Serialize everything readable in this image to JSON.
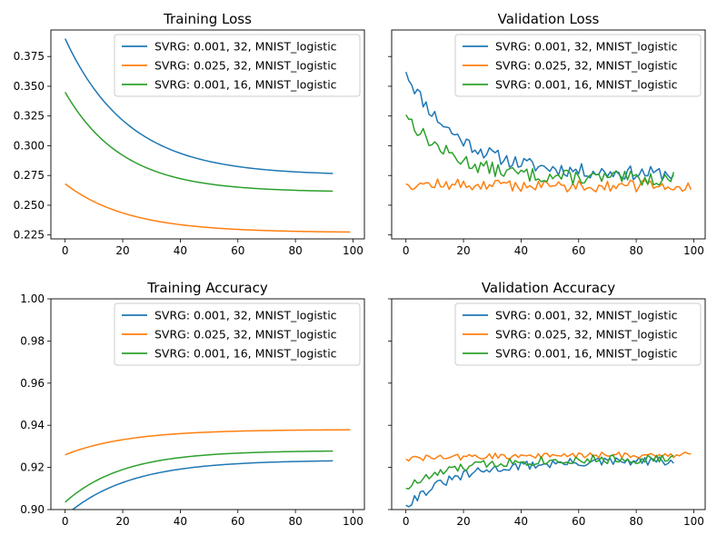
{
  "chart_data": [
    {
      "type": "line",
      "title": "Training Loss",
      "xlim": [
        -4.95,
        103.95
      ],
      "ylim": [
        0.2217,
        0.3973
      ],
      "xticks": [
        0,
        20,
        40,
        60,
        80,
        100
      ],
      "yticks": [
        0.225,
        0.25,
        0.275,
        0.3,
        0.325,
        0.35,
        0.375
      ],
      "ytick_labels": [
        "0.225",
        "0.250",
        "0.275",
        "0.300",
        "0.325",
        "0.350",
        "0.375"
      ],
      "show_ytick_labels": true,
      "legend": "top-right",
      "series": [
        {
          "name": "SVRG: 0.001, 32, MNIST_logistic",
          "color": "#1f77b4",
          "curve": {
            "kind": "decay",
            "n": 94,
            "start": 0.39,
            "end": 0.275,
            "tau": 22,
            "noise": 0,
            "seed": 1
          }
        },
        {
          "name": "SVRG: 0.025, 32, MNIST_logistic",
          "color": "#ff7f0e",
          "curve": {
            "kind": "decay",
            "n": 100,
            "start": 0.268,
            "end": 0.227,
            "tau": 22,
            "noise": 0,
            "seed": 2
          }
        },
        {
          "name": "SVRG: 0.001, 16, MNIST_logistic",
          "color": "#2ca02c",
          "curve": {
            "kind": "decay",
            "n": 94,
            "start": 0.345,
            "end": 0.261,
            "tau": 20,
            "noise": 0,
            "seed": 3
          }
        }
      ]
    },
    {
      "type": "line",
      "title": "Validation Loss",
      "xlim": [
        -4.95,
        103.95
      ],
      "ylim": [
        0.2217,
        0.3973
      ],
      "xticks": [
        0,
        20,
        40,
        60,
        80,
        100
      ],
      "yticks": [
        0.225,
        0.25,
        0.275,
        0.3,
        0.325,
        0.35,
        0.375
      ],
      "ytick_labels": [
        "0.225",
        "0.250",
        "0.275",
        "0.300",
        "0.325",
        "0.350",
        "0.375"
      ],
      "show_ytick_labels": false,
      "legend": "top-right",
      "series": [
        {
          "name": "SVRG: 0.001, 32, MNIST_logistic",
          "color": "#1f77b4",
          "curve": {
            "kind": "decay",
            "n": 94,
            "start": 0.362,
            "end": 0.276,
            "tau": 18,
            "noise": 0.006,
            "seed": 11
          }
        },
        {
          "name": "SVRG: 0.025, 32, MNIST_logistic",
          "color": "#ff7f0e",
          "curve": {
            "kind": "decay",
            "n": 100,
            "start": 0.268,
            "end": 0.266,
            "tau": 30,
            "noise": 0.005,
            "seed": 12
          }
        },
        {
          "name": "SVRG: 0.001, 16, MNIST_logistic",
          "color": "#2ca02c",
          "curve": {
            "kind": "decay",
            "n": 94,
            "start": 0.326,
            "end": 0.272,
            "tau": 16,
            "noise": 0.006,
            "seed": 13
          }
        }
      ]
    },
    {
      "type": "line",
      "title": "Training Accuracy",
      "xlim": [
        -4.95,
        103.95
      ],
      "ylim": [
        0.9,
        1.0
      ],
      "xticks": [
        0,
        20,
        40,
        60,
        80,
        100
      ],
      "yticks": [
        0.9,
        0.92,
        0.94,
        0.96,
        0.98,
        1.0
      ],
      "ytick_labels": [
        "0.90",
        "0.92",
        "0.94",
        "0.96",
        "0.98",
        "1.00"
      ],
      "show_ytick_labels": true,
      "legend": "top-right",
      "series": [
        {
          "name": "SVRG: 0.001, 32, MNIST_logistic",
          "color": "#1f77b4",
          "curve": {
            "kind": "decay",
            "n": 94,
            "start": 0.897,
            "end": 0.9235,
            "tau": 22,
            "noise": 0,
            "seed": 21
          }
        },
        {
          "name": "SVRG: 0.025, 32, MNIST_logistic",
          "color": "#ff7f0e",
          "curve": {
            "kind": "decay",
            "n": 100,
            "start": 0.926,
            "end": 0.938,
            "tau": 22,
            "noise": 0,
            "seed": 22
          }
        },
        {
          "name": "SVRG: 0.001, 16, MNIST_logistic",
          "color": "#2ca02c",
          "curve": {
            "kind": "decay",
            "n": 94,
            "start": 0.9035,
            "end": 0.928,
            "tau": 20,
            "noise": 0,
            "seed": 23
          }
        }
      ]
    },
    {
      "type": "line",
      "title": "Validation Accuracy",
      "xlim": [
        -4.95,
        103.95
      ],
      "ylim": [
        0.9,
        1.0
      ],
      "xticks": [
        0,
        20,
        40,
        60,
        80,
        100
      ],
      "yticks": [
        0.9,
        0.92,
        0.94,
        0.96,
        0.98,
        1.0
      ],
      "ytick_labels": [
        "0.90",
        "0.92",
        "0.94",
        "0.96",
        "0.98",
        "1.00"
      ],
      "show_ytick_labels": false,
      "legend": "top-right",
      "series": [
        {
          "name": "SVRG: 0.001, 32, MNIST_logistic",
          "color": "#1f77b4",
          "curve": {
            "kind": "decay",
            "n": 94,
            "start": 0.902,
            "end": 0.923,
            "tau": 18,
            "noise": 0.0022,
            "seed": 31
          }
        },
        {
          "name": "SVRG: 0.025, 32, MNIST_logistic",
          "color": "#ff7f0e",
          "curve": {
            "kind": "decay",
            "n": 100,
            "start": 0.924,
            "end": 0.926,
            "tau": 30,
            "noise": 0.0015,
            "seed": 32
          }
        },
        {
          "name": "SVRG: 0.001, 16, MNIST_logistic",
          "color": "#2ca02c",
          "curve": {
            "kind": "decay",
            "n": 94,
            "start": 0.91,
            "end": 0.924,
            "tau": 16,
            "noise": 0.0022,
            "seed": 33
          }
        }
      ]
    }
  ]
}
